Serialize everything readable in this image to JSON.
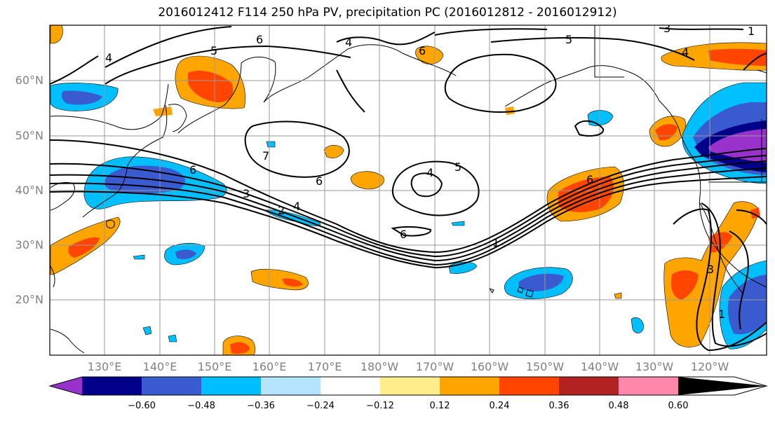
{
  "title": "2016012412 F114 250 hPa PV, precipitation PC (2016012812 - 2016012912)",
  "lat_labels": [
    "60°N",
    "50°N",
    "40°N",
    "30°N",
    "20°N"
  ],
  "lon_labels": [
    "130°E",
    "140°E",
    "150°E",
    "160°E",
    "170°E",
    "180°W",
    "170°W",
    "160°W",
    "150°W",
    "140°W",
    "130°W",
    "120°W"
  ],
  "contour_labels": [
    "4",
    "5",
    "6",
    "5",
    "3",
    "4",
    "4",
    "6",
    "7",
    "6",
    "4",
    "5",
    "6",
    "3",
    "2",
    "4",
    "6",
    "1",
    "6",
    "1",
    "3",
    "1"
  ],
  "colorbar": {
    "tick_labels": [
      "−0.60",
      "−0.48",
      "−0.36",
      "−0.24",
      "−0.12",
      "0.12",
      "0.24",
      "0.36",
      "0.48",
      "0.60"
    ],
    "colors": [
      "#9932cc",
      "#00008b",
      "#3a5bd0",
      "#00bfff",
      "#b4e4ff",
      "#ffffff",
      "#ffec8b",
      "#ffa500",
      "#ff4500",
      "#b22222",
      "#ff88aa"
    ]
  }
}
